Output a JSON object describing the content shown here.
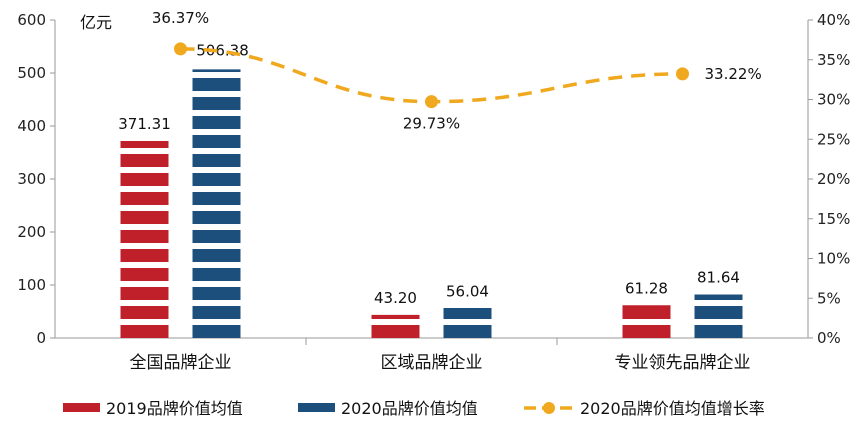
{
  "chart_data": {
    "type": "bar",
    "unit_label": "亿元",
    "categories": [
      "全国品牌企业",
      "区域品牌企业",
      "专业领先品牌企业"
    ],
    "series": [
      {
        "name": "2019品牌价值均值",
        "type": "bar",
        "axis": "left",
        "values": [
          371.31,
          43.2,
          61.28
        ],
        "labels": [
          "371.31",
          "43.20",
          "61.28"
        ]
      },
      {
        "name": "2020品牌价值均值",
        "type": "bar",
        "axis": "left",
        "values": [
          506.38,
          56.04,
          81.64
        ],
        "labels": [
          "506.38",
          "56.04",
          "81.64"
        ]
      },
      {
        "name": "2020品牌价值均值增长率",
        "type": "line",
        "axis": "right",
        "values": [
          36.37,
          29.73,
          33.22
        ],
        "labels": [
          "36.37%",
          "29.73%",
          "33.22%"
        ]
      }
    ],
    "ylim_left": [
      0,
      600
    ],
    "yticks_left": [
      "0",
      "100",
      "200",
      "300",
      "400",
      "500",
      "600"
    ],
    "ylim_right": [
      0,
      40
    ],
    "yticks_right": [
      "0%",
      "5%",
      "10%",
      "15%",
      "20%",
      "25%",
      "30%",
      "35%",
      "40%"
    ],
    "legend_position": "bottom",
    "grid": false,
    "colors": {
      "s2019": "#c0202a",
      "s2020": "#1c4f7c",
      "growth": "#f0a81e",
      "axis": "#9a9a9a"
    }
  }
}
